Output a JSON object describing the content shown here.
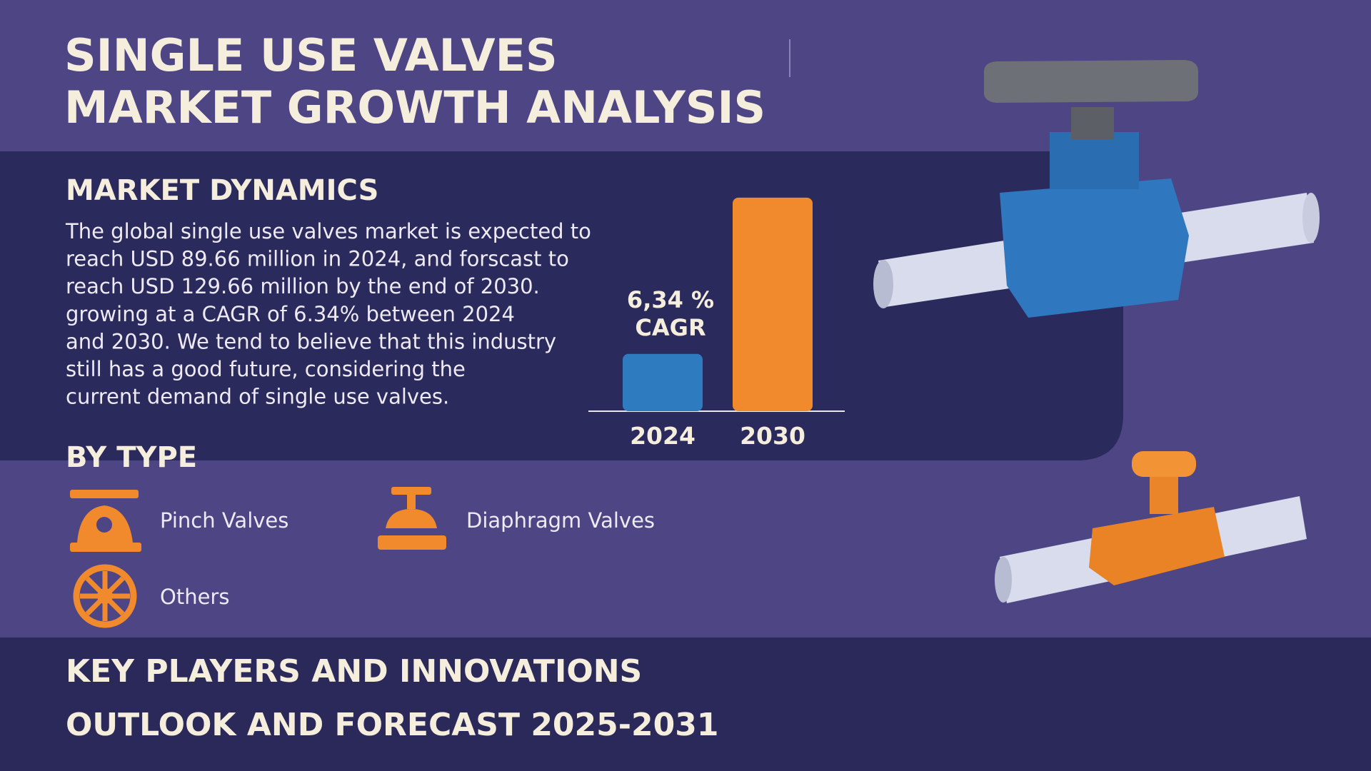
{
  "header": {
    "title_lines": [
      "SINGLE USE VALVES",
      "MARKET GROWTH ANALYSIS"
    ]
  },
  "market_dynamics": {
    "heading": "MARKET DYNAMICS",
    "paragraph_lines": [
      "The global single use valves market is expected to",
      "reach USD 89.66 million in 2024, and forscast to",
      "reach USD 129.66 million by the end of 2030.",
      "growing at a CAGR of 6.34% between 2024",
      "and 2030. We tend to believe that this industry",
      "still has a good future, considering the",
      "current demand of single use valves."
    ]
  },
  "chart_data": {
    "type": "bar",
    "categories": [
      "2024",
      "2030"
    ],
    "values": [
      89.66,
      129.66
    ],
    "colors": [
      "#2f7bbf",
      "#f08a2c"
    ],
    "ylim": [
      75,
      130
    ],
    "annotation_lines": [
      "6,34 %",
      "CAGR"
    ]
  },
  "by_type": {
    "heading": "BY TYPE",
    "items": [
      "Pinch Valves",
      "Diaphragm Valves",
      "Others"
    ]
  },
  "footer": {
    "lines": [
      "KEY PLAYERS AND INNOVATIONS",
      "OUTLOOK AND FORECAST 2025-2031"
    ]
  }
}
